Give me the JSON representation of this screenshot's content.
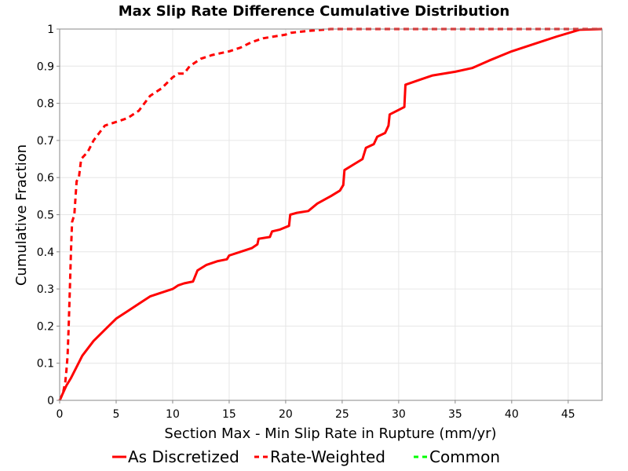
{
  "chart_data": {
    "type": "line",
    "title": "Max Slip Rate Difference Cumulative Distribution",
    "xlabel": "Section Max - Min Slip Rate in Rupture (mm/yr)",
    "ylabel": "Cumulative Fraction",
    "xlim": [
      0,
      48
    ],
    "ylim": [
      0,
      1
    ],
    "xticks": [
      0,
      5,
      10,
      15,
      20,
      25,
      30,
      35,
      40,
      45
    ],
    "yticks": [
      0,
      0.1,
      0.2,
      0.3,
      0.4,
      0.5,
      0.6,
      0.7,
      0.8,
      0.9,
      1
    ],
    "ytick_labels": [
      "0",
      "0.1",
      "0.2",
      "0.3",
      "0.4",
      "0.5",
      "0.6",
      "0.7",
      "0.8",
      "0.9",
      "1"
    ],
    "grid": true,
    "legend_position": "bottom",
    "series": [
      {
        "name": "As Discretized",
        "color": "#ff0000",
        "dash": "solid",
        "points": [
          [
            0,
            0
          ],
          [
            0.3,
            0.02
          ],
          [
            0.6,
            0.04
          ],
          [
            1,
            0.06
          ],
          [
            1.5,
            0.09
          ],
          [
            2,
            0.12
          ],
          [
            3,
            0.16
          ],
          [
            4,
            0.19
          ],
          [
            5,
            0.22
          ],
          [
            6,
            0.24
          ],
          [
            7,
            0.26
          ],
          [
            8,
            0.28
          ],
          [
            9,
            0.29
          ],
          [
            10,
            0.3
          ],
          [
            10.5,
            0.31
          ],
          [
            11,
            0.315
          ],
          [
            11.8,
            0.32
          ],
          [
            12.2,
            0.35
          ],
          [
            13,
            0.365
          ],
          [
            14,
            0.375
          ],
          [
            14.8,
            0.38
          ],
          [
            15,
            0.39
          ],
          [
            16,
            0.4
          ],
          [
            17,
            0.41
          ],
          [
            17.5,
            0.42
          ],
          [
            17.6,
            0.435
          ],
          [
            18.6,
            0.44
          ],
          [
            18.8,
            0.455
          ],
          [
            19.5,
            0.46
          ],
          [
            20.3,
            0.47
          ],
          [
            20.4,
            0.5
          ],
          [
            21,
            0.505
          ],
          [
            22,
            0.51
          ],
          [
            22.8,
            0.53
          ],
          [
            24,
            0.55
          ],
          [
            24.8,
            0.565
          ],
          [
            25.1,
            0.58
          ],
          [
            25.2,
            0.62
          ],
          [
            26,
            0.635
          ],
          [
            26.8,
            0.65
          ],
          [
            27.1,
            0.68
          ],
          [
            27.8,
            0.69
          ],
          [
            28.1,
            0.71
          ],
          [
            28.8,
            0.72
          ],
          [
            29.1,
            0.74
          ],
          [
            29.2,
            0.77
          ],
          [
            30.5,
            0.79
          ],
          [
            30.6,
            0.85
          ],
          [
            32,
            0.865
          ],
          [
            33,
            0.875
          ],
          [
            35,
            0.885
          ],
          [
            36.5,
            0.895
          ],
          [
            38,
            0.915
          ],
          [
            40,
            0.94
          ],
          [
            42,
            0.96
          ],
          [
            44,
            0.98
          ],
          [
            46,
            0.998
          ],
          [
            48,
            1
          ]
        ]
      },
      {
        "name": "Rate-Weighted",
        "color": "#ff0000",
        "dash": "dashed",
        "points": [
          [
            0,
            0
          ],
          [
            0.3,
            0.02
          ],
          [
            0.5,
            0.05
          ],
          [
            0.6,
            0.08
          ],
          [
            0.7,
            0.12
          ],
          [
            0.8,
            0.2
          ],
          [
            0.9,
            0.3
          ],
          [
            1,
            0.4
          ],
          [
            1.1,
            0.48
          ],
          [
            1.3,
            0.5
          ],
          [
            1.5,
            0.59
          ],
          [
            1.7,
            0.6
          ],
          [
            1.9,
            0.65
          ],
          [
            2.5,
            0.67
          ],
          [
            3,
            0.7
          ],
          [
            3.5,
            0.72
          ],
          [
            4,
            0.74
          ],
          [
            5,
            0.75
          ],
          [
            6,
            0.76
          ],
          [
            7,
            0.78
          ],
          [
            7.5,
            0.8
          ],
          [
            8,
            0.82
          ],
          [
            9,
            0.84
          ],
          [
            10,
            0.87
          ],
          [
            10.5,
            0.88
          ],
          [
            11,
            0.88
          ],
          [
            11.5,
            0.9
          ],
          [
            12.5,
            0.92
          ],
          [
            13.5,
            0.93
          ],
          [
            15,
            0.94
          ],
          [
            16,
            0.95
          ],
          [
            17,
            0.965
          ],
          [
            18,
            0.975
          ],
          [
            20,
            0.985
          ],
          [
            20.5,
            0.99
          ],
          [
            22,
            0.995
          ],
          [
            24,
            1
          ],
          [
            48,
            1
          ]
        ]
      },
      {
        "name": "Common",
        "color": "#00ff00",
        "dash": "dashed",
        "points": []
      }
    ]
  }
}
